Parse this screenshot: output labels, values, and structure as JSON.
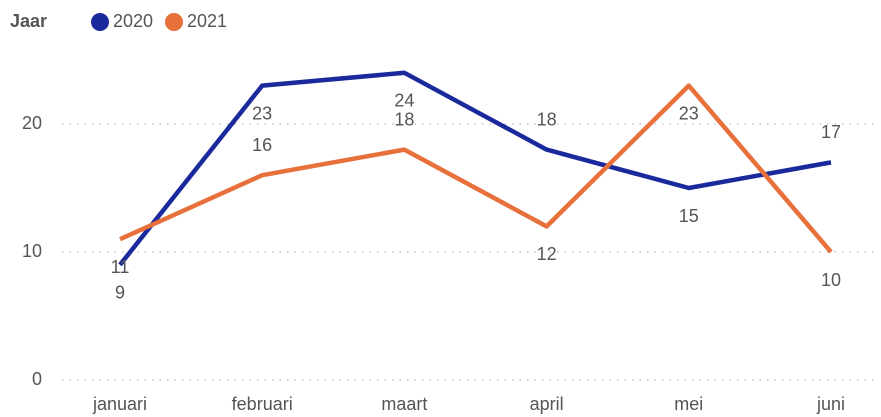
{
  "chart_data": {
    "type": "line",
    "legend_title": "Jaar",
    "categories": [
      "januari",
      "februari",
      "maart",
      "april",
      "mei",
      "juni"
    ],
    "series": [
      {
        "name": "2020",
        "color": "#1a2a9c",
        "values": [
          9,
          23,
          24,
          18,
          15,
          17
        ]
      },
      {
        "name": "2021",
        "color": "#e8703a",
        "values": [
          11,
          16,
          18,
          12,
          23,
          10
        ]
      }
    ],
    "ylim": [
      0,
      26
    ],
    "yticks": [
      0,
      10,
      20
    ],
    "grid": true
  }
}
